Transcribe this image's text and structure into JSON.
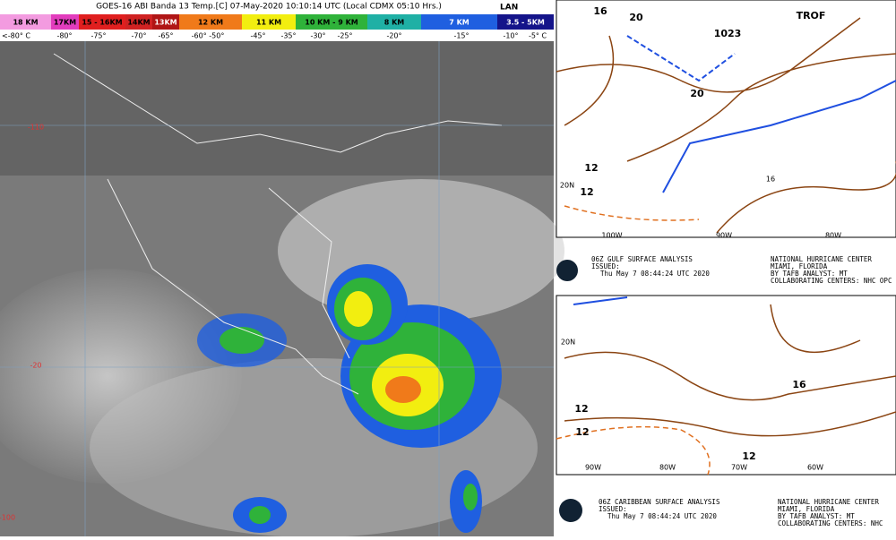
{
  "satellite": {
    "title": "GOES-16 ABI Banda 13 Temp.[C] 07-May-2020 10:10:14 UTC (Local CDMX  05:10 Hrs.)",
    "logo": "LAN",
    "legend": [
      {
        "label": "18 KM",
        "color": "#f39be0"
      },
      {
        "label": "17KM",
        "color": "#e23dbd"
      },
      {
        "label": "15 - 16KM",
        "color": "#e01f1f"
      },
      {
        "label": "14KM",
        "color": "#d02222"
      },
      {
        "label": "13KM",
        "color": "#b01515"
      },
      {
        "label": "12 KM",
        "color": "#f07a1a"
      },
      {
        "label": "11 KM",
        "color": "#f2ee10"
      },
      {
        "label": "10 KM - 9 KM",
        "color": "#2fb23a"
      },
      {
        "label": "8 KM",
        "color": "#1fb0a5"
      },
      {
        "label": "7 KM",
        "color": "#1f5fe0"
      },
      {
        "label": "3.5 - 5KM",
        "color": "#14148a"
      }
    ],
    "temps": [
      "<-80° C",
      "-80°",
      "-75°",
      "-70°",
      "-65°",
      "-60° -50°",
      "-45°",
      "-35°",
      "-30°",
      "-25°",
      "-20°",
      "-15°",
      "-10°",
      "-5° C"
    ],
    "grid_labels": [
      "-110",
      "-20",
      "-100"
    ]
  },
  "gulf_map": {
    "labels": [
      "16",
      "20",
      "1023",
      "TROF",
      "20",
      "12",
      "12",
      "20N",
      "100W",
      "90W",
      "80W",
      "16"
    ],
    "caption": {
      "title": "06Z GULF SURFACE ANALYSIS",
      "issued": "ISSUED:",
      "time": "Thu May 7 08:44:24 UTC 2020",
      "center": "NATIONAL HURRICANE CENTER",
      "city": "MIAMI,  FLORIDA",
      "analyst": "BY TAFB ANALYST: MT",
      "collab": "COLLABORATING CENTERS: NHC OPC WPC"
    }
  },
  "caribbean_map": {
    "labels": [
      "12",
      "12",
      "16",
      "20N",
      "90W",
      "80W",
      "70W",
      "60W",
      "12"
    ],
    "caption": {
      "title": "06Z CARIBBEAN SURFACE ANALYSIS",
      "issued": "ISSUED:",
      "time": "Thu May 7 08:44:24 UTC 2020",
      "center": "NATIONAL HURRICANE CENTER",
      "city": "MIAMI,  FLORIDA",
      "analyst": "BY TAFB ANALYST: MT",
      "collab": "COLLABORATING CENTERS: NHC"
    }
  }
}
